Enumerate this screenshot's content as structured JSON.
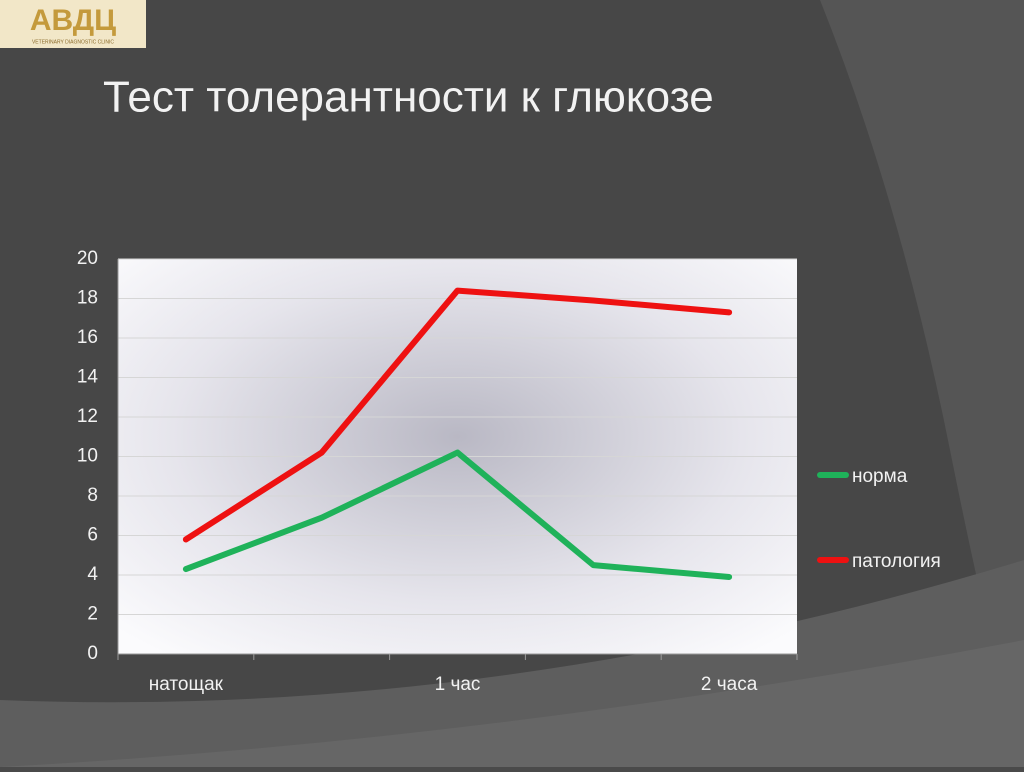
{
  "logo": {
    "title": "АВДЦ",
    "subtitle": "VETERINARY DIAGNOSTIC CLINIC"
  },
  "chart_data": {
    "type": "line",
    "title": "Тест толерантности к глюкозе",
    "categories": [
      "натощак",
      null,
      "1 час",
      null,
      "2 часа"
    ],
    "series": [
      {
        "name": "норма",
        "color": "#1fb25a",
        "values": [
          4.3,
          6.9,
          10.2,
          4.5,
          3.9
        ]
      },
      {
        "name": "патология",
        "color": "#ee1111",
        "values": [
          5.8,
          10.2,
          18.4,
          17.9,
          17.3
        ]
      }
    ],
    "ylim": [
      0,
      20
    ],
    "yticks": [
      0,
      2,
      4,
      6,
      8,
      10,
      12,
      14,
      16,
      18,
      20
    ],
    "grid": true,
    "legend": "right"
  }
}
